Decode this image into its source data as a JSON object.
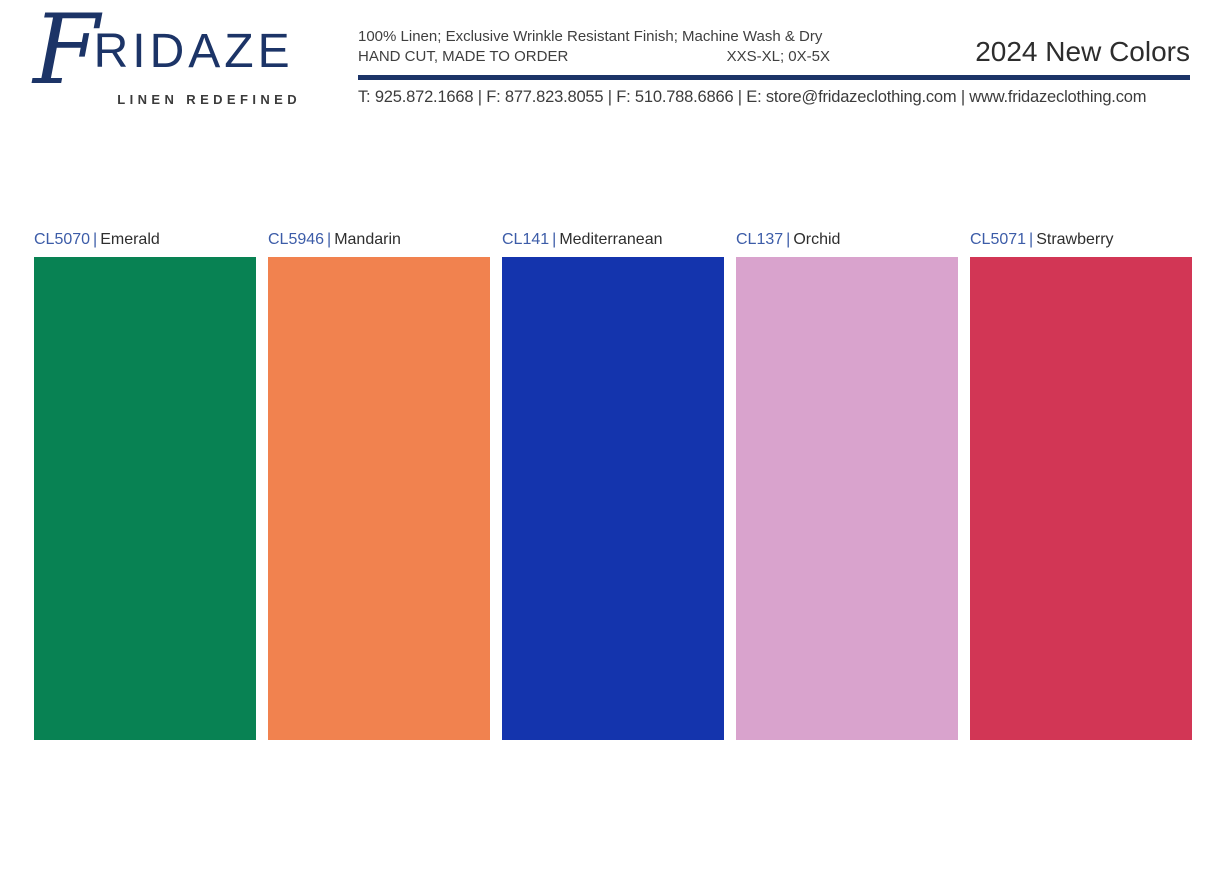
{
  "colors": {
    "navy": "#1C3467",
    "code_blue": "#3C5CA8",
    "text_dark": "#3F3F3F"
  },
  "logo": {
    "brand_initial": "F",
    "brand_rest": "RIDAZE",
    "tagline": "LINEN REDEFINED"
  },
  "header": {
    "line1": "100% Linen; Exclusive Wrinkle Resistant Finish; Machine Wash & Dry",
    "line2_left": "HAND CUT, MADE TO ORDER",
    "line2_right": "XXS-XL; 0X-5X",
    "title": "2024 New Colors",
    "contact": "T: 925.872.1668 | F: 877.823.8055 | F: 510.788.6866 | E: store@fridazeclothing.com | www.fridazeclothing.com"
  },
  "separator": "|",
  "swatches": [
    {
      "code": "CL5070",
      "name": "Emerald",
      "hex": "#088253"
    },
    {
      "code": "CL5946",
      "name": "Mandarin",
      "hex": "#F1824F"
    },
    {
      "code": "CL141",
      "name": "Mediterranean",
      "hex": "#1434AD"
    },
    {
      "code": "CL137",
      "name": "Orchid",
      "hex": "#D9A3CD"
    },
    {
      "code": "CL5071",
      "name": "Strawberry",
      "hex": "#D23655"
    }
  ]
}
